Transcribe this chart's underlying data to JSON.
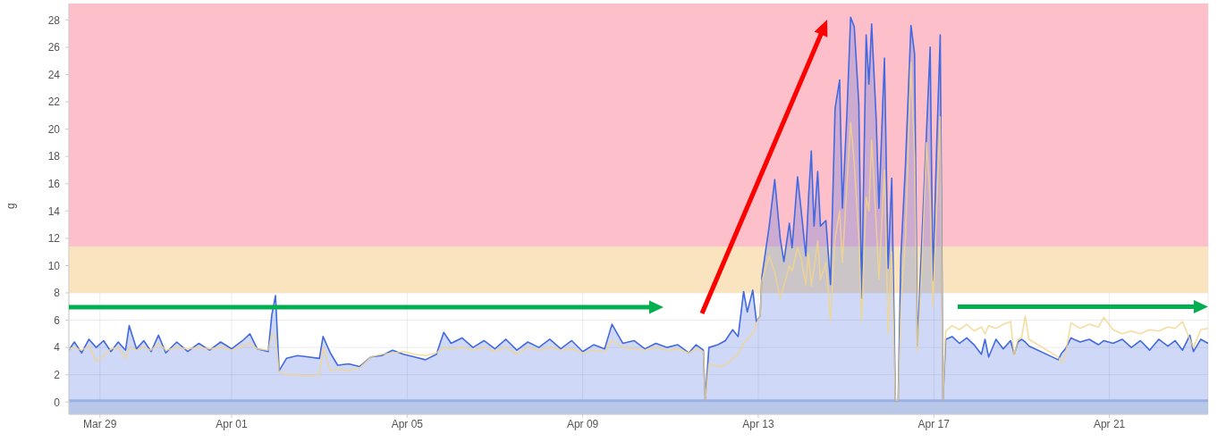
{
  "chart_data": {
    "type": "line",
    "ylabel": "g",
    "x": [
      "--03-28T07:00",
      "--03-28T10:00",
      "--03-28T14:00",
      "--03-28T18:00",
      "--03-28T22:00",
      "--03-29T02:00",
      "--03-29T06:00",
      "--03-29T10:00",
      "--03-29T14:00",
      "--03-29T16:00",
      "--03-29T20:00",
      "--03-30T00:00",
      "--03-30T04:00",
      "--03-30T08:00",
      "--03-30T12:00",
      "--03-30T18:00",
      "--03-31T00:00",
      "--03-31T06:00",
      "--03-31T12:00",
      "--03-31T18:00",
      "--04-01T00:00",
      "--04-01T06:00",
      "--04-01T10:00",
      "--04-01T14:00",
      "--04-01T20:00",
      "--04-01T22:00",
      "--04-02T00:00",
      "--04-02T02:00",
      "--04-02T06:00",
      "--04-02T12:00",
      "--04-02T18:00",
      "--04-03T00:00",
      "--04-03T02:00",
      "--04-03T06:00",
      "--04-03T10:00",
      "--04-03T16:00",
      "--04-03T22:00",
      "--04-04T04:00",
      "--04-04T10:00",
      "--04-04T16:00",
      "--04-04T22:00",
      "--04-05T04:00",
      "--04-05T10:00",
      "--04-05T16:00",
      "--04-05T20:00",
      "--04-06T00:00",
      "--04-06T06:00",
      "--04-06T12:00",
      "--04-06T18:00",
      "--04-07T00:00",
      "--04-07T06:00",
      "--04-07T12:00",
      "--04-07T18:00",
      "--04-08T00:00",
      "--04-08T06:00",
      "--04-08T12:00",
      "--04-08T18:00",
      "--04-09T00:00",
      "--04-09T06:00",
      "--04-09T12:00",
      "--04-09T16:00",
      "--04-09T22:00",
      "--04-10T04:00",
      "--04-10T10:00",
      "--04-10T16:00",
      "--04-10T22:00",
      "--04-11T04:00",
      "--04-11T10:00",
      "--04-11T14:00",
      "--04-11T18:00",
      "--04-11T19:00",
      "--04-11T21:00",
      "--04-12T02:00",
      "--04-12T06:00",
      "--04-12T10:00",
      "--04-12T13:00",
      "--04-12T16:00",
      "--04-12T18:00",
      "--04-12T21:00",
      "--04-12T23:00",
      "--04-13T01:00",
      "--04-13T02:00",
      "--04-13T06:00",
      "--04-13T09:00",
      "--04-13T12:00",
      "--04-13T14:00",
      "--04-13T17:00",
      "--04-13T18:30",
      "--04-13T21:30",
      "--04-13T23:30",
      "--04-14T02:00",
      "--04-14T03:30",
      "--04-14T05:00",
      "--04-14T06:30",
      "--04-14T08:30",
      "--04-14T10:00",
      "--04-14T13:00",
      "--04-14T15:30",
      "--04-14T18:00",
      "--04-14T20:30",
      "--04-14T22:00",
      "--04-15T00:30",
      "--04-15T02:30",
      "--04-15T04:30",
      "--04-15T07:00",
      "--04-15T08:30",
      "--04-15T11:00",
      "--04-15T12:30",
      "--04-15T14:00",
      "--04-15T16:30",
      "--04-15T18:00",
      "--04-15T21:00",
      "--04-15T23:00",
      "--04-16T01:00",
      "--04-16T03:00",
      "--04-16T04:30",
      "--04-16T06:00",
      "--04-16T08:30",
      "--04-16T11:30",
      "--04-16T13:30",
      "--04-16T15:00",
      "--04-16T17:30",
      "--04-16T20:00",
      "--04-16T22:00",
      "--04-16T23:30",
      "--04-17T01:30",
      "--04-17T03:30",
      "--04-17T05:00",
      "--04-17T06:30",
      "--04-17T10:00",
      "--04-17T14:00",
      "--04-17T18:00",
      "--04-17T22:00",
      "--04-18T02:00",
      "--04-18T04:00",
      "--04-18T06:00",
      "--04-18T10:00",
      "--04-18T14:00",
      "--04-18T18:00",
      "--04-18T20:00",
      "--04-18T22:00",
      "--04-19T00:00",
      "--04-19T02:00",
      "--04-19T04:00",
      "--04-19T20:00",
      "--04-19T22:00",
      "--04-20T00:00",
      "--04-20T03:00",
      "--04-20T08:00",
      "--04-20T13:00",
      "--04-20T18:00",
      "--04-20T21:00",
      "--04-21T02:00",
      "--04-21T07:00",
      "--04-21T12:00",
      "--04-21T17:00",
      "--04-21T22:00",
      "--04-22T03:00",
      "--04-22T08:00",
      "--04-22T12:00",
      "--04-22T16:00",
      "--04-22T20:00",
      "--04-22T22:00",
      "--04-23T02:00",
      "--04-23T06:00"
    ],
    "series": [
      {
        "type": "area",
        "color": "#4169e1",
        "values": [
          3.8,
          4.4,
          3.6,
          4.6,
          4.0,
          4.5,
          3.7,
          4.4,
          3.8,
          5.6,
          3.9,
          4.5,
          3.7,
          4.9,
          3.6,
          4.4,
          3.7,
          4.3,
          3.8,
          4.4,
          3.9,
          4.5,
          5.0,
          3.9,
          3.7,
          6.4,
          7.8,
          2.3,
          3.2,
          3.4,
          3.3,
          3.2,
          4.8,
          3.6,
          2.7,
          2.8,
          2.6,
          3.3,
          3.4,
          3.8,
          3.5,
          3.3,
          3.1,
          3.5,
          5.1,
          4.3,
          4.7,
          4.0,
          4.5,
          3.9,
          4.6,
          3.8,
          4.4,
          4.0,
          4.6,
          3.9,
          4.5,
          3.7,
          4.2,
          3.9,
          5.7,
          4.3,
          4.5,
          3.9,
          4.3,
          4.0,
          4.2,
          3.6,
          4.2,
          3.8,
          0.1,
          4.0,
          4.2,
          4.5,
          5.3,
          4.8,
          8.1,
          6.6,
          8.2,
          5.9,
          6.3,
          9.2,
          12.9,
          16.3,
          12.0,
          10.3,
          13.1,
          11.3,
          16.5,
          14.0,
          10.7,
          15.0,
          18.4,
          12.9,
          16.9,
          12.9,
          13.3,
          8.6,
          21.5,
          23.6,
          14.2,
          21.2,
          28.2,
          27.5,
          21.8,
          7.6,
          26.9,
          23.3,
          27.7,
          20.7,
          14.2,
          25.2,
          9.8,
          16.4,
          0.1,
          0.1,
          10.7,
          17.4,
          27.6,
          25.5,
          4.1,
          12.0,
          19.8,
          26.0,
          8.9,
          18.5,
          26.9,
          0.1,
          4.6,
          4.8,
          4.3,
          4.7,
          4.2,
          3.5,
          4.6,
          3.3,
          4.6,
          3.9,
          4.5,
          3.5,
          4.4,
          4.6,
          4.4,
          4.1,
          3.1,
          3.6,
          3.9,
          4.7,
          4.4,
          4.6,
          4.2,
          4.5,
          4.3,
          4.6,
          4.0,
          4.5,
          3.8,
          4.6,
          4.1,
          4.5,
          3.8,
          4.9,
          3.7,
          4.6,
          4.3
        ]
      },
      {
        "color": "#f2d48a",
        "values": [
          3.9,
          4.0,
          3.8,
          4.1,
          3.0,
          3.4,
          3.9,
          4.0,
          3.2,
          4.0,
          3.8,
          4.0,
          3.8,
          4.3,
          3.8,
          4.0,
          3.9,
          4.0,
          3.9,
          4.0,
          3.8,
          4.1,
          4.3,
          3.9,
          3.8,
          5.0,
          4.8,
          2.2,
          2.0,
          2.0,
          1.9,
          2.0,
          4.0,
          2.3,
          2.4,
          2.3,
          2.5,
          3.3,
          3.5,
          3.6,
          3.7,
          3.5,
          3.4,
          3.6,
          4.0,
          3.9,
          4.0,
          3.8,
          4.0,
          3.7,
          4.0,
          3.5,
          4.0,
          3.8,
          4.0,
          3.8,
          3.9,
          3.6,
          3.8,
          3.7,
          4.5,
          4.0,
          3.9,
          3.8,
          4.0,
          3.8,
          3.9,
          3.6,
          3.9,
          3.7,
          0.1,
          2.8,
          2.6,
          2.7,
          3.2,
          3.5,
          4.3,
          4.6,
          5.0,
          5.8,
          6.3,
          8.9,
          10.7,
          9.5,
          7.6,
          8.5,
          10.0,
          9.6,
          11.3,
          10.5,
          8.6,
          10.9,
          8.5,
          9.8,
          11.8,
          9.0,
          10.2,
          5.9,
          12.0,
          14.0,
          10.2,
          16.0,
          20.5,
          17.5,
          12.0,
          5.9,
          15.0,
          14.0,
          19.2,
          13.0,
          9.0,
          17.0,
          5.0,
          11.0,
          0.1,
          0.1,
          7.0,
          12.0,
          24.9,
          18.0,
          3.7,
          10.0,
          19.0,
          15.0,
          7.0,
          14.0,
          20.9,
          0.1,
          5.2,
          5.6,
          5.3,
          5.7,
          5.2,
          5.5,
          5.0,
          5.6,
          5.4,
          5.7,
          5.9,
          3.4,
          4.6,
          4.7,
          6.3,
          4.6,
          3.3,
          2.9,
          3.5,
          5.8,
          5.4,
          5.7,
          5.5,
          6.2,
          5.3,
          5.0,
          5.2,
          5.0,
          5.3,
          5.2,
          5.5,
          5.4,
          5.9,
          4.6,
          4.0,
          5.3,
          5.4
        ]
      }
    ],
    "xlim": [
      "--03-28T07:00",
      "--04-23T06:00"
    ],
    "xticks": [
      {
        "value": "--03-29",
        "label": "Mar 29"
      },
      {
        "value": "--04-01",
        "label": "Apr 01"
      },
      {
        "value": "--04-05",
        "label": "Apr 05"
      },
      {
        "value": "--04-09",
        "label": "Apr 09"
      },
      {
        "value": "--04-13",
        "label": "Apr 13"
      },
      {
        "value": "--04-17",
        "label": "Apr 17"
      },
      {
        "value": "--04-21",
        "label": "Apr 21"
      }
    ],
    "ylim": [
      -0.9,
      29.2
    ],
    "yticks": [
      0,
      2,
      4,
      6,
      8,
      10,
      12,
      14,
      16,
      18,
      20,
      22,
      24,
      26,
      28
    ],
    "bands": [
      {
        "axis": "y",
        "from": -0.9,
        "to": 0.2,
        "color": "#b9c8e8"
      },
      {
        "axis": "y",
        "from": 8,
        "to": 11.4,
        "color": "#fae4c0"
      },
      {
        "axis": "y",
        "from": 11.4,
        "to": 29.2,
        "color": "#fdc0cb"
      }
    ],
    "grid": true
  }
}
